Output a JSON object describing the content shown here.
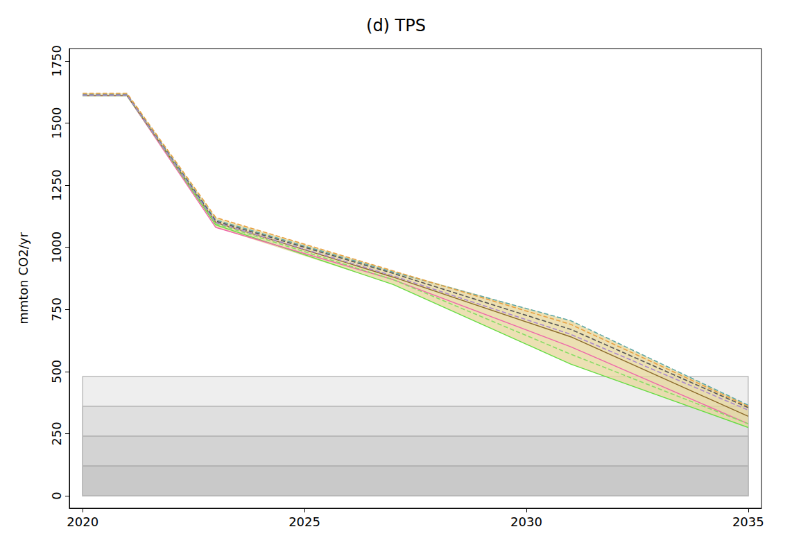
{
  "chart_data": {
    "type": "line",
    "title": "(d) TPS",
    "y_label": "mmton CO2/yr",
    "x": [
      2020,
      2021,
      2023,
      2027,
      2031,
      2035
    ],
    "xlim": [
      2019.7,
      2035.3
    ],
    "xticks": [
      2020,
      2025,
      2030,
      2035
    ],
    "ylim": [
      -50,
      1800
    ],
    "yticks": [
      0,
      250,
      500,
      750,
      1000,
      1250,
      1500,
      1750
    ],
    "grid": false,
    "series": [
      {
        "color": "#66dd44",
        "line_style": "solid",
        "values": [
          1610,
          1610,
          1090,
          850,
          530,
          275
        ]
      },
      {
        "color": "#ee66aa",
        "line_style": "solid",
        "values": [
          1610,
          1610,
          1080,
          870,
          600,
          290
        ]
      },
      {
        "color": "#8b6a2a",
        "line_style": "solid",
        "values": [
          1610,
          1610,
          1100,
          880,
          640,
          320
        ]
      },
      {
        "color": "#88dd66",
        "line_style": "dashed",
        "values": [
          1610,
          1610,
          1095,
          870,
          570,
          290
        ]
      },
      {
        "color": "#5fa8a8",
        "line_style": "dashed",
        "values": [
          1615,
          1615,
          1110,
          900,
          705,
          365
        ]
      },
      {
        "color": "#555555",
        "line_style": "dashed",
        "values": [
          1612,
          1612,
          1105,
          895,
          670,
          355
        ]
      },
      {
        "color": "#e8a040",
        "line_style": "dashed",
        "values": [
          1620,
          1620,
          1120,
          905,
          690,
          360
        ]
      },
      {
        "color": "#aa88cc",
        "line_style": "dashed",
        "values": [
          1612,
          1612,
          1100,
          885,
          650,
          345
        ]
      }
    ],
    "range_band": {
      "color": "#e6d69a",
      "lower": [
        1610,
        1610,
        1080,
        850,
        530,
        275
      ],
      "upper": [
        1620,
        1620,
        1120,
        905,
        705,
        365
      ]
    },
    "bands": {
      "from": 0,
      "to": [
        120,
        240,
        360,
        480
      ],
      "x": [
        2020,
        2035
      ]
    }
  }
}
